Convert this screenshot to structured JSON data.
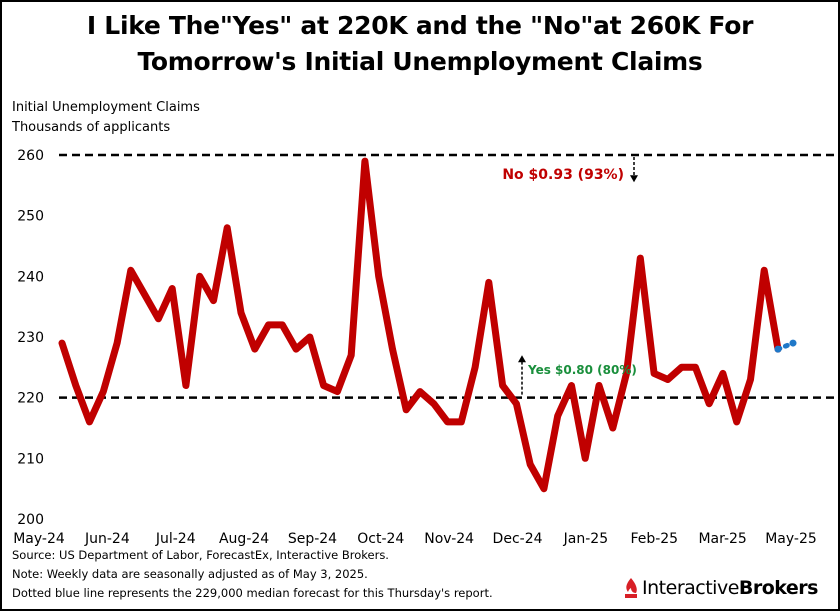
{
  "title_lines": [
    "I Like The\"Yes\" at 220K and the \"No\"at 260K For",
    "Tomorrow's Initial Unemployment Claims"
  ],
  "footnotes": [
    "Source: US Department of Labor, ForecastEx, Interactive Brokers.",
    "Note: Weekly data are seasonally adjusted as of May 3, 2025.",
    "Dotted blue line represents the 229,000 median forecast for this Thursday's report."
  ],
  "logo": {
    "name_part1": "Interactive",
    "name_part2": "Brokers",
    "icon": "interactive-brokers-flame-icon",
    "icon_color": "#d81f26"
  },
  "colors": {
    "series_line": "#c00000",
    "forecast": "#1f78c8",
    "reference_line": "#000000",
    "no_label": "#c00000",
    "yes_label": "#1a8f3c"
  },
  "chart_data": {
    "type": "line",
    "ylabel_lines": [
      "Initial Unemployment Claims",
      "Thousands of applicants"
    ],
    "ylim": [
      200,
      260
    ],
    "yticks": [
      200,
      210,
      220,
      230,
      240,
      250,
      260
    ],
    "ytick_labels": [
      "200",
      "210",
      "220",
      "230",
      "240",
      "250",
      "260"
    ],
    "xtick_labels": [
      "May-24",
      "Jun-24",
      "Jul-24",
      "Aug-24",
      "Sep-24",
      "Oct-24",
      "Nov-24",
      "Dec-24",
      "Jan-25",
      "Feb-25",
      "Mar-25",
      "May-25"
    ],
    "grid": false,
    "series": [
      {
        "values": [
          229,
          222,
          216,
          221,
          229,
          241,
          237,
          233,
          238,
          222,
          240,
          236,
          248,
          234,
          228,
          232,
          232,
          228,
          230,
          222,
          221,
          227,
          259,
          240,
          228,
          218,
          221,
          219,
          216,
          216,
          225,
          239,
          222,
          219,
          209,
          205,
          217,
          222,
          210,
          222,
          215,
          224,
          243,
          224,
          223,
          225,
          225,
          219,
          224,
          216,
          223,
          241,
          228
        ]
      }
    ],
    "forecast": {
      "values": [
        228,
        229
      ]
    },
    "reference_lines": [
      {
        "y": 260,
        "style": "dashed"
      },
      {
        "y": 220,
        "style": "dashed"
      }
    ],
    "annotations": [
      {
        "text": "No $0.93 (93%)",
        "y_start": 260,
        "y_end": 257,
        "direction": "down"
      },
      {
        "text": "Yes $0.80 (80%)",
        "y_start": 220,
        "y_end": 227,
        "direction": "up"
      }
    ]
  }
}
